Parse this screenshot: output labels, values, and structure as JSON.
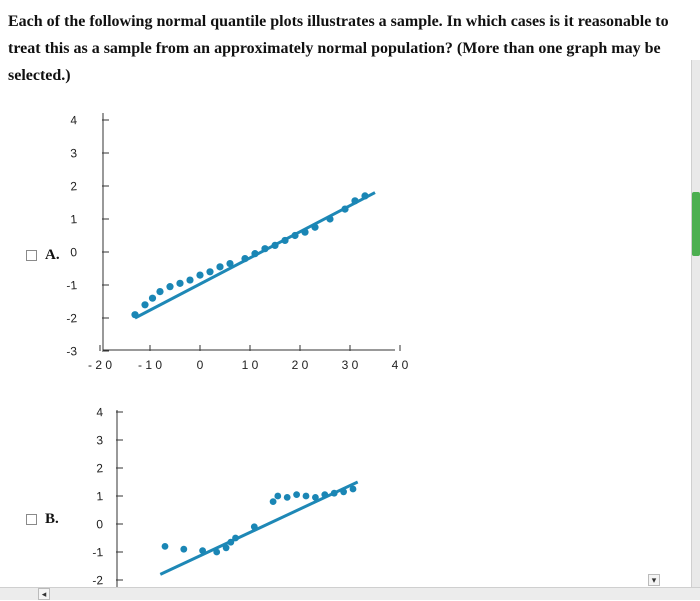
{
  "question": {
    "text": "Each of the following normal quantile plots illustrates a sample. In which cases is it reasonable to treat this as a sample from an approximately normal population? (More than one graph may be selected.)"
  },
  "options": [
    {
      "label": "A."
    },
    {
      "label": "B."
    }
  ],
  "colors": {
    "accent": "#1e88b6",
    "dots": "#1a86b5"
  },
  "icons": {
    "left_arrow": "◂",
    "down_arrow": "▾"
  },
  "plots": [
    {
      "y_ticks": [
        "4",
        "3",
        "2",
        "1",
        "0",
        "-1",
        "-2",
        "-3"
      ],
      "x_ticks": [
        "-20",
        "-10",
        "0",
        "10",
        "20",
        "30",
        "40"
      ],
      "points": [
        [
          -13,
          -1.9
        ],
        [
          -11,
          -1.6
        ],
        [
          -9.5,
          -1.4
        ],
        [
          -8,
          -1.2
        ],
        [
          -6,
          -1.05
        ],
        [
          -4,
          -0.95
        ],
        [
          -2,
          -0.85
        ],
        [
          0,
          -0.7
        ],
        [
          2,
          -0.6
        ],
        [
          4,
          -0.45
        ],
        [
          6,
          -0.35
        ],
        [
          9,
          -0.2
        ],
        [
          11,
          -0.05
        ],
        [
          13,
          0.1
        ],
        [
          15,
          0.2
        ],
        [
          17,
          0.35
        ],
        [
          19,
          0.5
        ],
        [
          21,
          0.6
        ],
        [
          23,
          0.75
        ],
        [
          26,
          1.0
        ],
        [
          29,
          1.3
        ],
        [
          31,
          1.55
        ],
        [
          33,
          1.7
        ]
      ],
      "line": [
        [
          -13,
          -2.0
        ],
        [
          35,
          1.8
        ]
      ]
    },
    {
      "y_ticks": [
        "4",
        "3",
        "2",
        "1",
        "0",
        "-1",
        "-2"
      ],
      "points": [
        [
          -10,
          -0.8
        ],
        [
          -6,
          -0.9
        ],
        [
          -2,
          -0.95
        ],
        [
          1,
          -1.0
        ],
        [
          3,
          -0.85
        ],
        [
          4,
          -0.65
        ],
        [
          5,
          -0.5
        ],
        [
          9,
          -0.1
        ],
        [
          13,
          0.8
        ],
        [
          14,
          1.0
        ],
        [
          16,
          0.95
        ],
        [
          18,
          1.05
        ],
        [
          20,
          1.0
        ],
        [
          22,
          0.95
        ],
        [
          24,
          1.05
        ],
        [
          26,
          1.1
        ],
        [
          28,
          1.15
        ],
        [
          30,
          1.25
        ]
      ],
      "line": [
        [
          -11,
          -1.8
        ],
        [
          31,
          1.5
        ]
      ]
    }
  ]
}
